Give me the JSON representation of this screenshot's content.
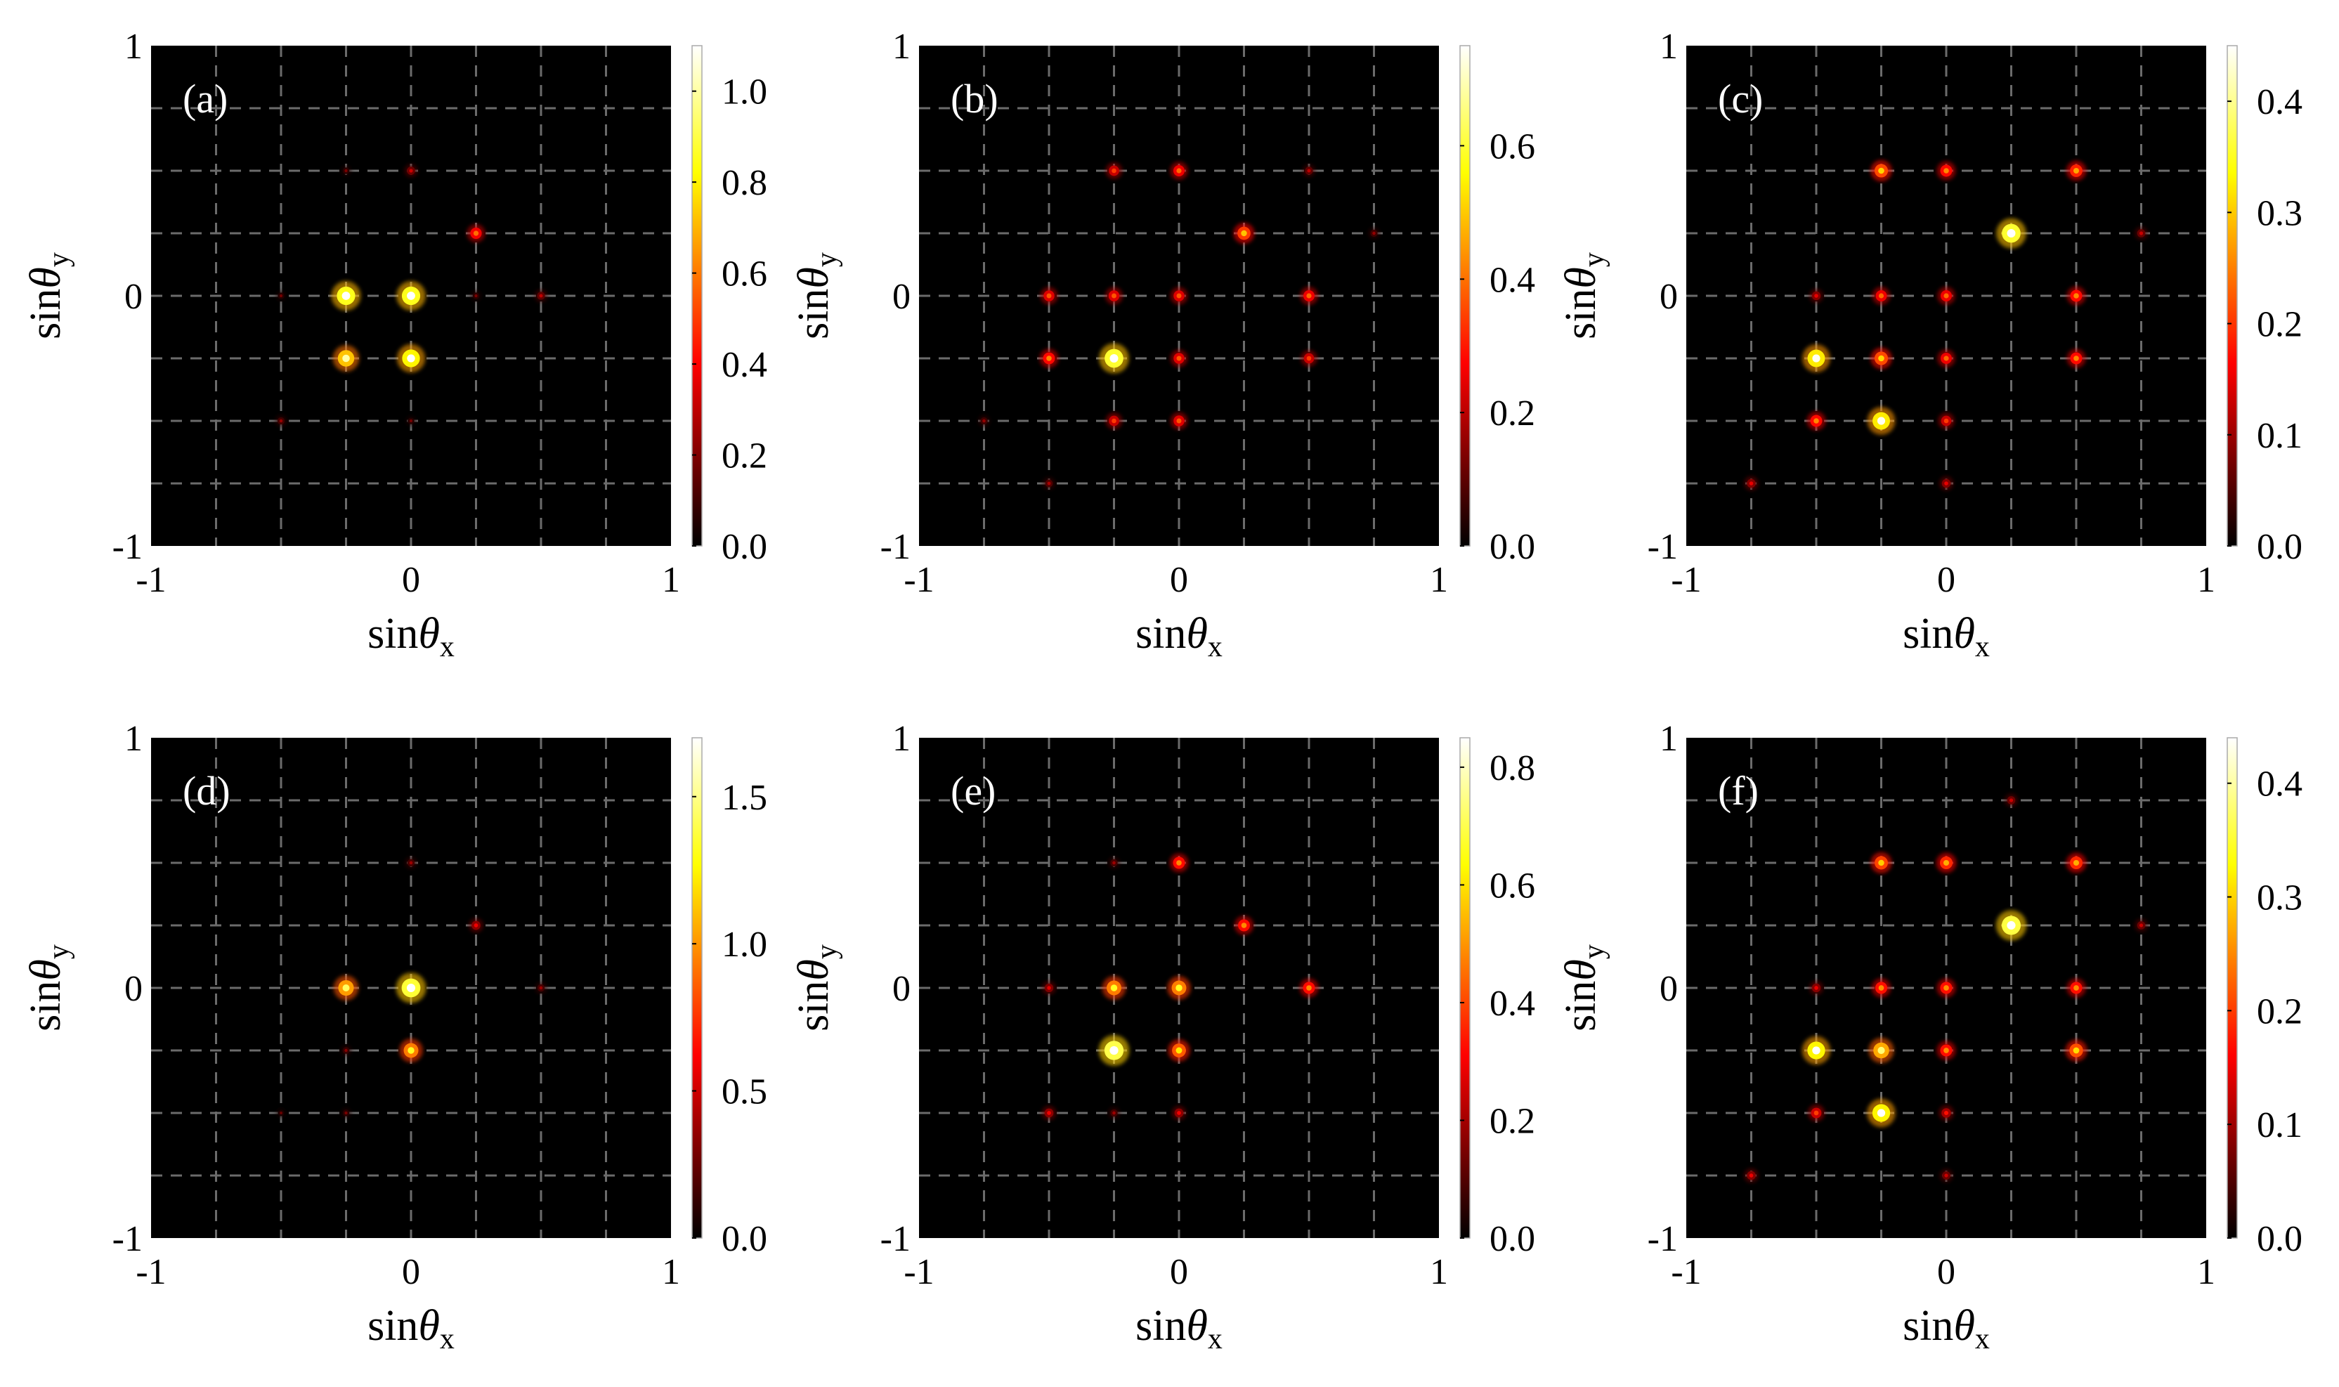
{
  "chart_data": [
    {
      "type": "heatmap",
      "panel_label": "(a)",
      "xlabel": "sinθx",
      "ylabel": "sinθy",
      "xlim": [
        -1,
        1
      ],
      "ylim": [
        -1,
        1
      ],
      "x_ticks": [
        "-1",
        "0",
        "1"
      ],
      "y_ticks": [
        "1",
        "0",
        "-1"
      ],
      "grid": {
        "on": true,
        "spacing": 0.25,
        "style": "dashed"
      },
      "colorbar": {
        "colormap": "hot",
        "range": [
          0,
          1.1
        ],
        "ticks": [
          "0.0",
          "0.2",
          "0.4",
          "0.6",
          "0.8",
          "1.0"
        ]
      },
      "peaks": [
        {
          "x": -0.25,
          "y": 0,
          "v": 1.0
        },
        {
          "x": 0,
          "y": 0,
          "v": 1.0
        },
        {
          "x": -0.25,
          "y": -0.25,
          "v": 0.85
        },
        {
          "x": 0,
          "y": -0.25,
          "v": 0.95
        },
        {
          "x": 0.25,
          "y": 0.25,
          "v": 0.45
        },
        {
          "x": 0.5,
          "y": 0,
          "v": 0.18
        },
        {
          "x": 0,
          "y": 0.5,
          "v": 0.2
        },
        {
          "x": -0.5,
          "y": -0.5,
          "v": 0.12
        },
        {
          "x": -0.25,
          "y": 0.5,
          "v": 0.08
        },
        {
          "x": 0.25,
          "y": 0,
          "v": 0.08
        },
        {
          "x": -0.5,
          "y": 0,
          "v": 0.07
        },
        {
          "x": 0,
          "y": -0.5,
          "v": 0.07
        }
      ]
    },
    {
      "type": "heatmap",
      "panel_label": "(b)",
      "xlabel": "sinθx",
      "ylabel": "sinθy",
      "xlim": [
        -1,
        1
      ],
      "ylim": [
        -1,
        1
      ],
      "x_ticks": [
        "-1",
        "0",
        "1"
      ],
      "y_ticks": [
        "1",
        "0",
        "-1"
      ],
      "grid": {
        "on": true,
        "spacing": 0.25,
        "style": "dashed"
      },
      "colorbar": {
        "colormap": "hot",
        "range": [
          0,
          0.75
        ],
        "ticks": [
          "0.0",
          "0.2",
          "0.4",
          "0.6"
        ]
      },
      "peaks": [
        {
          "x": -0.25,
          "y": -0.25,
          "v": 0.7
        },
        {
          "x": 0.25,
          "y": 0.25,
          "v": 0.4
        },
        {
          "x": -0.25,
          "y": 0.5,
          "v": 0.25
        },
        {
          "x": 0,
          "y": 0.5,
          "v": 0.3
        },
        {
          "x": 0.5,
          "y": 0.5,
          "v": 0.12
        },
        {
          "x": -0.5,
          "y": 0,
          "v": 0.28
        },
        {
          "x": -0.25,
          "y": 0,
          "v": 0.28
        },
        {
          "x": 0,
          "y": 0,
          "v": 0.28
        },
        {
          "x": 0.5,
          "y": 0,
          "v": 0.3
        },
        {
          "x": -0.5,
          "y": -0.25,
          "v": 0.33
        },
        {
          "x": 0,
          "y": -0.25,
          "v": 0.28
        },
        {
          "x": 0.5,
          "y": -0.25,
          "v": 0.25
        },
        {
          "x": -0.25,
          "y": -0.5,
          "v": 0.25
        },
        {
          "x": 0,
          "y": -0.5,
          "v": 0.28
        },
        {
          "x": -0.5,
          "y": -0.75,
          "v": 0.1
        },
        {
          "x": -0.75,
          "y": -0.5,
          "v": 0.08
        },
        {
          "x": 0.75,
          "y": 0.25,
          "v": 0.08
        }
      ]
    },
    {
      "type": "heatmap",
      "panel_label": "(c)",
      "xlabel": "sinθx",
      "ylabel": "sinθy",
      "xlim": [
        -1,
        1
      ],
      "ylim": [
        -1,
        1
      ],
      "x_ticks": [
        "-1",
        "0",
        "1"
      ],
      "y_ticks": [
        "1",
        "0",
        "-1"
      ],
      "grid": {
        "on": true,
        "spacing": 0.25,
        "style": "dashed"
      },
      "colorbar": {
        "colormap": "hot",
        "range": [
          0,
          0.45
        ],
        "ticks": [
          "0.0",
          "0.1",
          "0.2",
          "0.3",
          "0.4"
        ]
      },
      "peaks": [
        {
          "x": 0.25,
          "y": 0.25,
          "v": 0.42
        },
        {
          "x": -0.5,
          "y": -0.25,
          "v": 0.38
        },
        {
          "x": -0.25,
          "y": -0.5,
          "v": 0.38
        },
        {
          "x": -0.25,
          "y": 0.5,
          "v": 0.25
        },
        {
          "x": 0,
          "y": 0.5,
          "v": 0.2
        },
        {
          "x": 0.5,
          "y": 0.5,
          "v": 0.22
        },
        {
          "x": -0.25,
          "y": 0,
          "v": 0.18
        },
        {
          "x": 0,
          "y": 0,
          "v": 0.18
        },
        {
          "x": 0.5,
          "y": 0,
          "v": 0.2
        },
        {
          "x": -0.25,
          "y": -0.25,
          "v": 0.25
        },
        {
          "x": 0,
          "y": -0.25,
          "v": 0.18
        },
        {
          "x": 0.5,
          "y": -0.25,
          "v": 0.2
        },
        {
          "x": -0.5,
          "y": -0.5,
          "v": 0.2
        },
        {
          "x": 0,
          "y": -0.5,
          "v": 0.15
        },
        {
          "x": -0.75,
          "y": -0.75,
          "v": 0.1
        },
        {
          "x": 0,
          "y": -0.75,
          "v": 0.1
        },
        {
          "x": -0.5,
          "y": 0,
          "v": 0.1
        },
        {
          "x": 0.75,
          "y": 0.25,
          "v": 0.08
        }
      ]
    },
    {
      "type": "heatmap",
      "panel_label": "(d)",
      "xlabel": "sinθx",
      "ylabel": "sinθy",
      "xlim": [
        -1,
        1
      ],
      "ylim": [
        -1,
        1
      ],
      "x_ticks": [
        "-1",
        "0",
        "1"
      ],
      "y_ticks": [
        "1",
        "0",
        "-1"
      ],
      "grid": {
        "on": true,
        "spacing": 0.25,
        "style": "dashed"
      },
      "colorbar": {
        "colormap": "hot",
        "range": [
          0,
          1.7
        ],
        "ticks": [
          "0.0",
          "0.5",
          "1.0",
          "1.5"
        ]
      },
      "peaks": [
        {
          "x": 0,
          "y": 0,
          "v": 1.6
        },
        {
          "x": -0.25,
          "y": 0,
          "v": 1.2
        },
        {
          "x": 0,
          "y": -0.25,
          "v": 1.1
        },
        {
          "x": 0.25,
          "y": 0.25,
          "v": 0.4
        },
        {
          "x": 0,
          "y": 0.5,
          "v": 0.2
        },
        {
          "x": 0.5,
          "y": 0,
          "v": 0.2
        },
        {
          "x": -0.25,
          "y": -0.25,
          "v": 0.15
        },
        {
          "x": -0.25,
          "y": -0.5,
          "v": 0.12
        },
        {
          "x": -0.5,
          "y": -0.5,
          "v": 0.08
        }
      ]
    },
    {
      "type": "heatmap",
      "panel_label": "(e)",
      "xlabel": "sinθx",
      "ylabel": "sinθy",
      "xlim": [
        -1,
        1
      ],
      "ylim": [
        -1,
        1
      ],
      "x_ticks": [
        "-1",
        "0",
        "1"
      ],
      "y_ticks": [
        "1",
        "0",
        "-1"
      ],
      "grid": {
        "on": true,
        "spacing": 0.25,
        "style": "dashed"
      },
      "colorbar": {
        "colormap": "hot",
        "range": [
          0,
          0.85
        ],
        "ticks": [
          "0.0",
          "0.2",
          "0.4",
          "0.6",
          "0.8"
        ]
      },
      "peaks": [
        {
          "x": -0.25,
          "y": -0.25,
          "v": 0.82
        },
        {
          "x": -0.25,
          "y": 0,
          "v": 0.55
        },
        {
          "x": 0,
          "y": 0,
          "v": 0.55
        },
        {
          "x": 0,
          "y": -0.25,
          "v": 0.5
        },
        {
          "x": 0.25,
          "y": 0.25,
          "v": 0.38
        },
        {
          "x": 0,
          "y": 0.5,
          "v": 0.38
        },
        {
          "x": 0.5,
          "y": 0,
          "v": 0.38
        },
        {
          "x": -0.5,
          "y": 0,
          "v": 0.18
        },
        {
          "x": -0.5,
          "y": -0.5,
          "v": 0.2
        },
        {
          "x": 0,
          "y": -0.5,
          "v": 0.2
        },
        {
          "x": -0.25,
          "y": 0.5,
          "v": 0.1
        },
        {
          "x": -0.25,
          "y": -0.5,
          "v": 0.1
        }
      ]
    },
    {
      "type": "heatmap",
      "panel_label": "(f)",
      "xlabel": "sinθx",
      "ylabel": "sinθy",
      "xlim": [
        -1,
        1
      ],
      "ylim": [
        -1,
        1
      ],
      "x_ticks": [
        "-1",
        "0",
        "1"
      ],
      "y_ticks": [
        "1",
        "0",
        "-1"
      ],
      "grid": {
        "on": true,
        "spacing": 0.25,
        "style": "dashed"
      },
      "colorbar": {
        "colormap": "hot",
        "range": [
          0,
          0.44
        ],
        "ticks": [
          "0.0",
          "0.1",
          "0.2",
          "0.3",
          "0.4"
        ]
      },
      "peaks": [
        {
          "x": 0.25,
          "y": 0.25,
          "v": 0.42
        },
        {
          "x": -0.5,
          "y": -0.25,
          "v": 0.38
        },
        {
          "x": -0.25,
          "y": -0.5,
          "v": 0.38
        },
        {
          "x": -0.25,
          "y": -0.25,
          "v": 0.32
        },
        {
          "x": -0.25,
          "y": 0.5,
          "v": 0.24
        },
        {
          "x": 0,
          "y": 0.5,
          "v": 0.22
        },
        {
          "x": 0.5,
          "y": 0.5,
          "v": 0.22
        },
        {
          "x": -0.25,
          "y": 0,
          "v": 0.2
        },
        {
          "x": 0,
          "y": 0,
          "v": 0.2
        },
        {
          "x": 0.5,
          "y": 0,
          "v": 0.2
        },
        {
          "x": 0,
          "y": -0.25,
          "v": 0.2
        },
        {
          "x": 0.5,
          "y": -0.25,
          "v": 0.25
        },
        {
          "x": -0.5,
          "y": -0.5,
          "v": 0.15
        },
        {
          "x": 0,
          "y": -0.5,
          "v": 0.12
        },
        {
          "x": -0.5,
          "y": 0,
          "v": 0.1
        },
        {
          "x": -0.75,
          "y": -0.75,
          "v": 0.1
        },
        {
          "x": 0,
          "y": -0.75,
          "v": 0.08
        },
        {
          "x": 0.25,
          "y": 0.75,
          "v": 0.08
        },
        {
          "x": 0.75,
          "y": 0.25,
          "v": 0.08
        }
      ]
    }
  ]
}
